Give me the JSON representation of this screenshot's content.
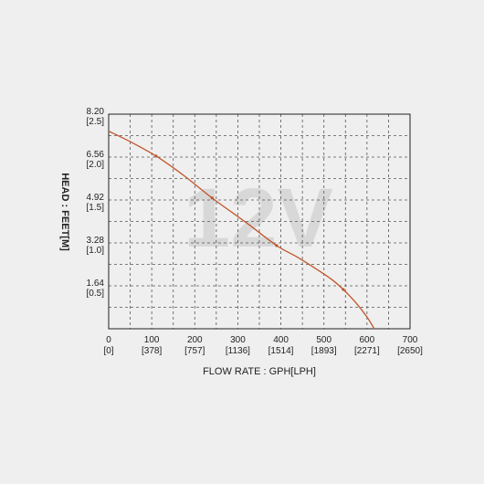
{
  "chart_data": {
    "type": "line",
    "title": "",
    "watermark": "12V",
    "xlabel": "FLOW RATE : GPH[LPH]",
    "ylabel": "HEAD : FEET[M]",
    "xlim": [
      0,
      700
    ],
    "ylim": [
      0,
      8.2
    ],
    "grid": true,
    "x_ticks": [
      {
        "value": 0,
        "label": "0",
        "sublabel": "[0]"
      },
      {
        "value": 100,
        "label": "100",
        "sublabel": "[378]"
      },
      {
        "value": 200,
        "label": "200",
        "sublabel": "[757]"
      },
      {
        "value": 300,
        "label": "300",
        "sublabel": "[1136]"
      },
      {
        "value": 400,
        "label": "400",
        "sublabel": "[1514]"
      },
      {
        "value": 500,
        "label": "500",
        "sublabel": "[1893]"
      },
      {
        "value": 600,
        "label": "600",
        "sublabel": "[2271]"
      },
      {
        "value": 700,
        "label": "700",
        "sublabel": "[2650]"
      }
    ],
    "y_ticks": [
      {
        "value": 1.64,
        "label": "1.64",
        "sublabel": "[0.5]"
      },
      {
        "value": 3.28,
        "label": "3.28",
        "sublabel": "[1.0]"
      },
      {
        "value": 4.92,
        "label": "4.92",
        "sublabel": "[1.5]"
      },
      {
        "value": 6.56,
        "label": "6.56",
        "sublabel": "[2.0]"
      },
      {
        "value": 8.2,
        "label": "8.20",
        "sublabel": "[2.5]"
      }
    ],
    "series": [
      {
        "color": "#c0552a",
        "x": [
          0,
          50,
          110,
          175,
          240,
          320,
          390,
          440,
          490,
          520,
          545,
          575,
          600,
          617
        ],
        "y": [
          7.55,
          7.15,
          6.6,
          5.85,
          5.0,
          4.05,
          3.18,
          2.72,
          2.2,
          1.86,
          1.5,
          0.98,
          0.45,
          0.0
        ],
        "markers": [
          {
            "x": 110,
            "y": 6.6
          },
          {
            "x": 240,
            "y": 5.0
          },
          {
            "x": 390,
            "y": 3.18
          },
          {
            "x": 545,
            "y": 1.5
          }
        ]
      }
    ],
    "colors": {
      "background": "#efefef",
      "frame": "#222222",
      "grid": "#555555",
      "watermark": "#d8d8d8"
    }
  }
}
